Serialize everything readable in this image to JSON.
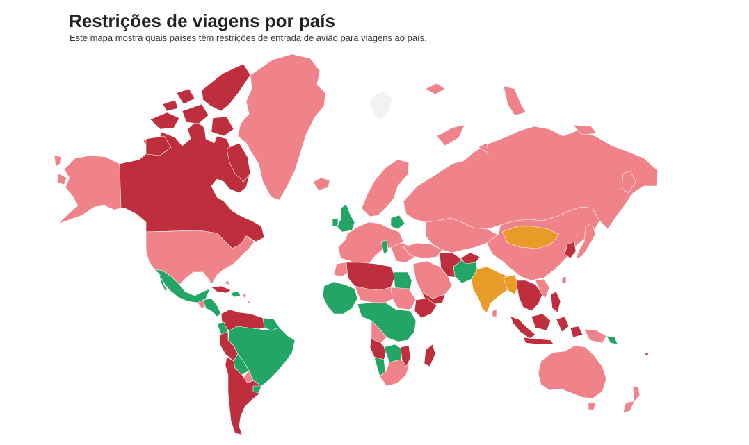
{
  "header": {
    "title": "Restrições de viagens por país",
    "subtitle": "Este mapa mostra quais países têm restrições de entrada de avião para viagens ao país."
  },
  "colors": {
    "total_restriction": "#bf2e3c",
    "partial_restriction": "#f0838a",
    "no_restriction": "#23a566",
    "quarantine": "#e99b27",
    "no_data": "#f2f2f2"
  }
}
